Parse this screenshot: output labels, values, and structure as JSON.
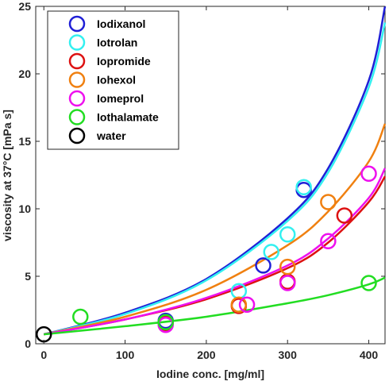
{
  "chart_data": {
    "type": "scatter",
    "xlabel": "Iodine conc. [mg/ml]",
    "ylabel": "viscosity at 37°C [mPa s]",
    "xlim": [
      -10,
      420
    ],
    "ylim": [
      0,
      25
    ],
    "xticks": [
      0,
      100,
      200,
      300,
      400
    ],
    "yticks": [
      0,
      5,
      10,
      15,
      20,
      25
    ],
    "grid": false,
    "legend_position": "top-left",
    "series": [
      {
        "name": "Iodixanol",
        "color": "#1f1fd6",
        "points": [
          [
            150,
            1.7
          ],
          [
            270,
            5.8
          ],
          [
            320,
            11.4
          ]
        ],
        "fit_curve": [
          [
            0,
            0.7
          ],
          [
            100,
            2.3
          ],
          [
            200,
            4.8
          ],
          [
            300,
            9.3
          ],
          [
            350,
            13.0
          ],
          [
            400,
            19.5
          ],
          [
            420,
            25.0
          ]
        ]
      },
      {
        "name": "Iotrolan",
        "color": "#33f0f0",
        "points": [
          [
            240,
            3.9
          ],
          [
            280,
            6.8
          ],
          [
            300,
            8.1
          ],
          [
            320,
            11.6
          ]
        ],
        "fit_curve": [
          [
            0,
            0.7
          ],
          [
            100,
            2.2
          ],
          [
            200,
            4.7
          ],
          [
            300,
            9.1
          ],
          [
            350,
            12.7
          ],
          [
            400,
            19.0
          ],
          [
            420,
            23.8
          ]
        ]
      },
      {
        "name": "Iopromide",
        "color": "#dd1111",
        "points": [
          [
            150,
            1.5
          ],
          [
            240,
            2.8
          ],
          [
            300,
            4.6
          ],
          [
            370,
            9.5
          ]
        ],
        "fit_curve": [
          [
            0,
            0.7
          ],
          [
            100,
            1.8
          ],
          [
            200,
            3.3
          ],
          [
            300,
            5.6
          ],
          [
            350,
            7.5
          ],
          [
            400,
            10.5
          ],
          [
            420,
            12.4
          ]
        ]
      },
      {
        "name": "Iohexol",
        "color": "#f08010",
        "points": [
          [
            240,
            2.9
          ],
          [
            300,
            5.7
          ],
          [
            350,
            10.5
          ]
        ],
        "fit_curve": [
          [
            0,
            0.7
          ],
          [
            100,
            2.0
          ],
          [
            200,
            4.0
          ],
          [
            300,
            7.3
          ],
          [
            350,
            9.8
          ],
          [
            400,
            13.5
          ],
          [
            420,
            16.3
          ]
        ]
      },
      {
        "name": "Iomeprol",
        "color": "#ee10ee",
        "points": [
          [
            150,
            1.4
          ],
          [
            250,
            2.9
          ],
          [
            300,
            4.5
          ],
          [
            350,
            7.6
          ],
          [
            400,
            12.6
          ]
        ],
        "fit_curve": [
          [
            0,
            0.7
          ],
          [
            100,
            1.8
          ],
          [
            200,
            3.4
          ],
          [
            300,
            5.8
          ],
          [
            350,
            7.8
          ],
          [
            400,
            10.8
          ],
          [
            420,
            13.0
          ]
        ]
      },
      {
        "name": "Iothalamate",
        "color": "#22dd22",
        "points": [
          [
            45,
            2.0
          ],
          [
            150,
            1.6
          ],
          [
            400,
            4.5
          ]
        ],
        "fit_curve": [
          [
            0,
            0.7
          ],
          [
            100,
            1.3
          ],
          [
            200,
            2.0
          ],
          [
            300,
            3.0
          ],
          [
            350,
            3.6
          ],
          [
            400,
            4.4
          ],
          [
            420,
            4.9
          ]
        ]
      },
      {
        "name": "water",
        "color": "#000000",
        "points": [
          [
            0,
            0.7
          ]
        ],
        "fit_curve": []
      }
    ]
  }
}
